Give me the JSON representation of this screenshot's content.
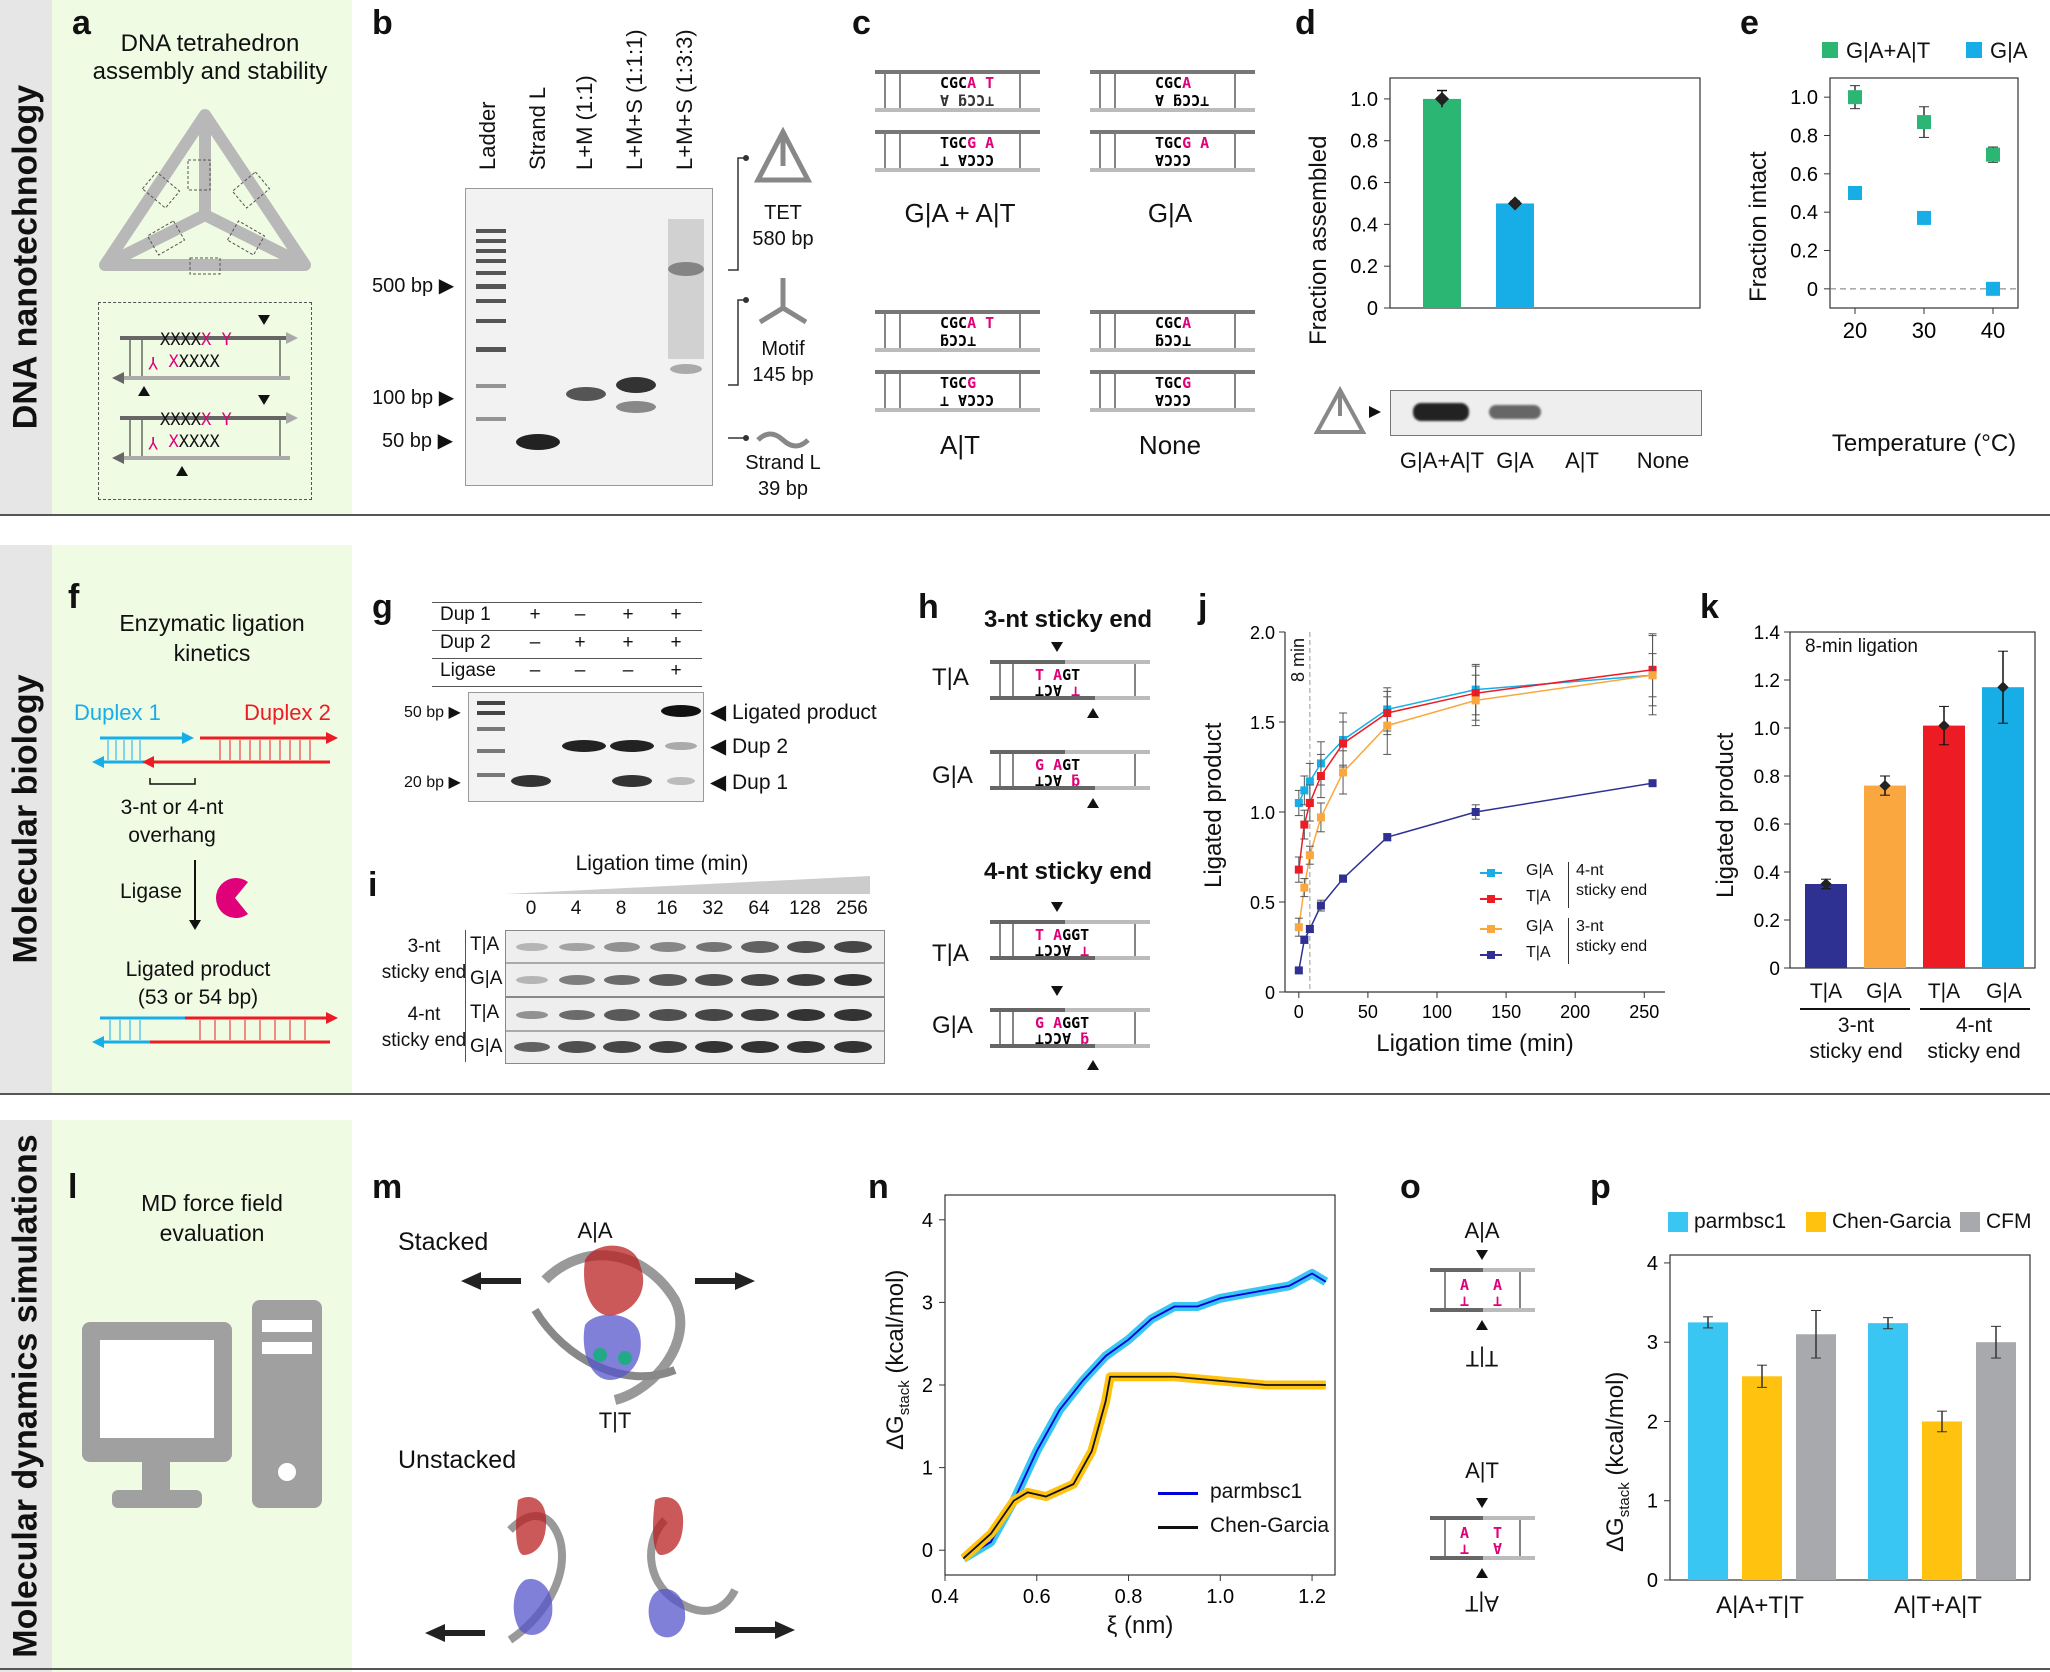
{
  "rows": [
    {
      "label": "DNA nanotechnology"
    },
    {
      "label": "Molecular biology"
    },
    {
      "label": "Molecular dynamics simulations"
    }
  ],
  "panel_a": {
    "letter": "a",
    "title_1": "DNA tetrahedron",
    "title_2": "assembly and stability",
    "seq_top": "XXXX",
    "seq_x": "X",
    "seq_y": "Y",
    "seq_bot_x": "X",
    "seq_bot": "XXXX",
    "seq_bot_y": "Y"
  },
  "panel_b": {
    "letter": "b",
    "lanes": [
      "Ladder",
      "Strand L",
      "L+M (1:1)",
      "L+M+S (1:1:1)",
      "L+M+S (1:3:3)"
    ],
    "markers": [
      "500 bp",
      "100 bp",
      "50 bp"
    ],
    "annot": [
      {
        "name": "TET",
        "size": "580 bp"
      },
      {
        "name": "Motif",
        "size": "145 bp"
      },
      {
        "name": "Strand L",
        "size": "39 bp"
      }
    ]
  },
  "panel_c": {
    "letter": "c",
    "labels": [
      "G|A + A|T",
      "G|A",
      "A|T",
      "None"
    ]
  },
  "panel_d": {
    "letter": "d",
    "ylabel": "Fraction assembled",
    "xcats": [
      "G|A+A|T",
      "G|A",
      "A|T",
      "None"
    ]
  },
  "panel_e": {
    "letter": "e",
    "ylabel": "Fraction intact",
    "xlabel": "Temperature (°C)",
    "legend": [
      "G|A+A|T",
      "G|A"
    ]
  },
  "panel_f": {
    "letter": "f",
    "title_1": "Enzymatic ligation",
    "title_2": "kinetics",
    "duplex1": "Duplex 1",
    "duplex2": "Duplex 2",
    "overhang_1": "3-nt or 4-nt",
    "overhang_2": "overhang",
    "ligase": "Ligase",
    "product_1": "Ligated product",
    "product_2": "(53 or 54 bp)"
  },
  "panel_g": {
    "letter": "g",
    "rows": [
      {
        "name": "Dup 1",
        "vals": [
          "+",
          "–",
          "+",
          "+"
        ]
      },
      {
        "name": "Dup 2",
        "vals": [
          "–",
          "+",
          "+",
          "+"
        ]
      },
      {
        "name": "Ligase",
        "vals": [
          "–",
          "–",
          "–",
          "+"
        ]
      }
    ],
    "markers": [
      "50 bp",
      "20 bp"
    ],
    "bands": [
      "Ligated product",
      "Dup 2",
      "Dup 1"
    ]
  },
  "panel_h": {
    "letter": "h",
    "title3": "3-nt sticky end",
    "title4": "4-nt sticky end",
    "ta": "T|A",
    "ga": "G|A"
  },
  "panel_i": {
    "letter": "i",
    "title": "Ligation time (min)",
    "times": [
      "0",
      "4",
      "8",
      "16",
      "32",
      "64",
      "128",
      "256"
    ],
    "group3": [
      "3-nt",
      "sticky end"
    ],
    "group4": [
      "4-nt",
      "sticky end"
    ],
    "ta": "T|A",
    "ga": "G|A"
  },
  "panel_j": {
    "letter": "j",
    "ylabel": "Ligated product",
    "xlabel": "Ligation time (min)",
    "annotation": "8 min",
    "legend": [
      {
        "name": "G|A",
        "group": "4-nt"
      },
      {
        "name": "T|A",
        "group": "sticky end"
      },
      {
        "name": "G|A",
        "group": "3-nt"
      },
      {
        "name": "T|A",
        "group": "sticky end"
      }
    ]
  },
  "panel_k": {
    "letter": "k",
    "title": "8-min ligation",
    "ylabel": "Ligated product",
    "xcats": [
      "T|A",
      "G|A",
      "T|A",
      "G|A"
    ],
    "group3": [
      "3-nt",
      "sticky end"
    ],
    "group4": [
      "4-nt",
      "sticky end"
    ]
  },
  "panel_l": {
    "letter": "l",
    "title_1": "MD force field",
    "title_2": "evaluation"
  },
  "panel_m": {
    "letter": "m",
    "stacked": "Stacked",
    "unstacked": "Unstacked",
    "aa": "A|A",
    "tt": "T|T"
  },
  "panel_n": {
    "letter": "n",
    "ylabel": "ΔG",
    "ylabel_sub": "stack",
    "ylabel_unit": "(kcal/mol)",
    "xlabel": "ξ (nm)",
    "legend": [
      "parmbsc1",
      "Chen-Garcia"
    ]
  },
  "panel_o": {
    "letter": "o",
    "aa": "A|A",
    "tt": "T|T",
    "at": "A|T",
    "at_flip": "A|T"
  },
  "panel_p": {
    "letter": "p",
    "ylabel": "ΔG",
    "ylabel_sub": "stack",
    "ylabel_unit": "(kcal/mol)",
    "legend": [
      "parmbsc1",
      "Chen-Garcia",
      "CFM"
    ],
    "xcats": [
      "A|A+T|T",
      "A|T+A|T"
    ]
  },
  "colors": {
    "green": "#2bb673",
    "blue": "#17aee8",
    "red": "#ed1c24",
    "orange": "#f9a73e",
    "navy": "#2e3192",
    "magenta": "#e0007a",
    "cyan": "#3ac6f2",
    "gold": "#ffc20e",
    "grey": "#a7a9ac",
    "light_green": "#effbe3"
  },
  "chart_data": [
    {
      "id": "d",
      "type": "bar",
      "categories": [
        "G|A+A|T",
        "G|A",
        "A|T",
        "None"
      ],
      "values": [
        1.0,
        0.5,
        0,
        0
      ],
      "errors": [
        0.04,
        0.01,
        0,
        0
      ],
      "ylim": [
        0,
        1.1
      ],
      "yticks": [
        0,
        0.2,
        0.4,
        0.6,
        0.8,
        1.0
      ],
      "ylabel": "Fraction assembled"
    },
    {
      "id": "e",
      "type": "scatter",
      "x": [
        20,
        30,
        40
      ],
      "series": [
        {
          "name": "G|A+A|T",
          "values": [
            1.0,
            0.87,
            0.7
          ],
          "errors": [
            0.06,
            0.08,
            0.04
          ]
        },
        {
          "name": "G|A",
          "values": [
            0.5,
            0.37,
            0.0
          ],
          "errors": [
            0.02,
            0.01,
            0.0
          ]
        }
      ],
      "ylim": [
        -0.1,
        1.1
      ],
      "yticks": [
        0,
        0.2,
        0.4,
        0.6,
        0.8,
        1.0
      ],
      "xticks": [
        20,
        30,
        40
      ],
      "xlabel": "Temperature (°C)",
      "ylabel": "Fraction intact"
    },
    {
      "id": "j",
      "type": "line",
      "x": [
        0,
        4,
        8,
        16,
        32,
        64,
        128,
        256
      ],
      "series": [
        {
          "name": "G|A 4-nt sticky end",
          "values": [
            1.05,
            1.12,
            1.17,
            1.27,
            1.4,
            1.57,
            1.68,
            1.76
          ],
          "errors": [
            0.07,
            0.08,
            0.1,
            0.12,
            0.15,
            0.12,
            0.14,
            0.22
          ]
        },
        {
          "name": "T|A 4-nt sticky end",
          "values": [
            0.68,
            0.93,
            1.05,
            1.2,
            1.38,
            1.55,
            1.66,
            1.79
          ],
          "errors": [
            0.07,
            0.08,
            0.1,
            0.12,
            0.12,
            0.12,
            0.15,
            0.2
          ]
        },
        {
          "name": "G|A 3-nt sticky end",
          "values": [
            0.36,
            0.58,
            0.76,
            0.97,
            1.22,
            1.48,
            1.62,
            1.76
          ],
          "errors": [
            0.05,
            0.05,
            0.05,
            0.08,
            0.12,
            0.16,
            0.14,
            0.12
          ]
        },
        {
          "name": "T|A 3-nt sticky end",
          "values": [
            0.12,
            0.29,
            0.35,
            0.48,
            0.63,
            0.86,
            1.0,
            1.16
          ],
          "errors": [
            0.01,
            0.02,
            0.02,
            0.03,
            0.02,
            0.02,
            0.04,
            0.01
          ]
        }
      ],
      "xlim": [
        -10,
        265
      ],
      "ylim": [
        0,
        2.0
      ],
      "xticks": [
        0,
        50,
        100,
        150,
        200,
        250
      ],
      "yticks": [
        0,
        0.5,
        1.0,
        1.5,
        2.0
      ],
      "xlabel": "Ligation time (min)",
      "ylabel": "Ligated product"
    },
    {
      "id": "k",
      "type": "bar",
      "categories": [
        "T|A",
        "G|A",
        "T|A",
        "G|A"
      ],
      "values": [
        0.35,
        0.76,
        1.01,
        1.17
      ],
      "errors": [
        0.02,
        0.04,
        0.08,
        0.15
      ],
      "ylim": [
        0,
        1.4
      ],
      "yticks": [
        0,
        0.2,
        0.4,
        0.6,
        0.8,
        1.0,
        1.2,
        1.4
      ],
      "ylabel": "Ligated product",
      "title": "8-min ligation"
    },
    {
      "id": "n",
      "type": "line",
      "xlim": [
        0.4,
        1.25
      ],
      "ylim": [
        -0.3,
        4.3
      ],
      "xticks": [
        0.4,
        0.6,
        0.8,
        1.0,
        1.2
      ],
      "yticks": [
        0,
        1,
        2,
        3,
        4
      ],
      "series": [
        {
          "name": "parmbsc1",
          "x": [
            0.44,
            0.5,
            0.55,
            0.6,
            0.65,
            0.7,
            0.75,
            0.8,
            0.85,
            0.9,
            0.95,
            1.0,
            1.05,
            1.1,
            1.15,
            1.2,
            1.23
          ],
          "values": [
            -0.1,
            0.1,
            0.6,
            1.2,
            1.7,
            2.05,
            2.35,
            2.55,
            2.8,
            2.95,
            2.95,
            3.05,
            3.1,
            3.15,
            3.2,
            3.35,
            3.25
          ]
        },
        {
          "name": "Chen-Garcia",
          "x": [
            0.44,
            0.5,
            0.55,
            0.58,
            0.62,
            0.68,
            0.72,
            0.75,
            0.76,
            0.8,
            0.9,
            1.0,
            1.1,
            1.2,
            1.23
          ],
          "values": [
            -0.1,
            0.2,
            0.6,
            0.7,
            0.65,
            0.8,
            1.2,
            1.8,
            2.1,
            2.1,
            2.1,
            2.05,
            2.0,
            2.0,
            2.0
          ]
        }
      ],
      "xlabel": "ξ (nm)",
      "ylabel": "ΔGstack (kcal/mol)"
    },
    {
      "id": "p",
      "type": "bar",
      "categories": [
        "A|A+T|T",
        "A|T+A|T"
      ],
      "series": [
        {
          "name": "parmbsc1",
          "values": [
            3.25,
            3.24
          ],
          "errors": [
            0.07,
            0.07
          ]
        },
        {
          "name": "Chen-Garcia",
          "values": [
            2.57,
            2.0
          ],
          "errors": [
            0.14,
            0.13
          ]
        },
        {
          "name": "CFM",
          "values": [
            3.1,
            3.0
          ],
          "errors": [
            0.3,
            0.2
          ]
        }
      ],
      "ylim": [
        0,
        4.1
      ],
      "yticks": [
        0,
        1,
        2,
        3,
        4
      ],
      "ylabel": "ΔGstack (kcal/mol)"
    }
  ]
}
